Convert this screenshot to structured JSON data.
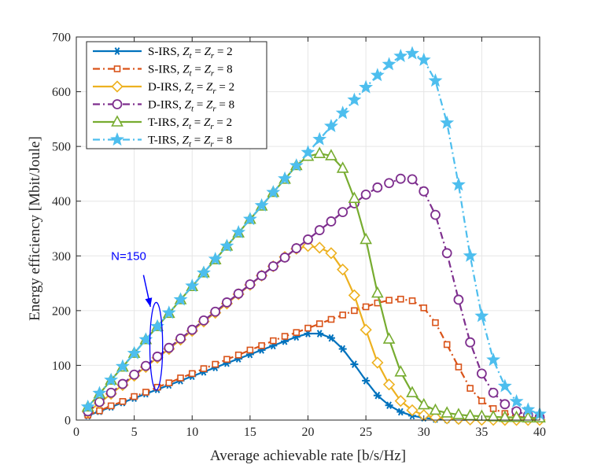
{
  "chart_data": {
    "type": "line",
    "title": "",
    "xlabel": "Average achievable rate [b/s/Hz]",
    "ylabel": "Energy efficiency [Mbit/Joule]",
    "xlim": [
      0,
      40
    ],
    "ylim": [
      0,
      700
    ],
    "xticks": [
      0,
      5,
      10,
      15,
      20,
      25,
      30,
      35,
      40
    ],
    "yticks": [
      0,
      100,
      200,
      300,
      400,
      500,
      600,
      700
    ],
    "grid": true,
    "legend_position": "top-left",
    "series": [
      {
        "name": "S-IRS, Z_t = Z_r = 2",
        "legend_main": "S-IRS, ",
        "legend_z": "2",
        "color": "#0072BD",
        "linestyle": "solid",
        "marker": "asterisk",
        "x": [
          1,
          2,
          3,
          4,
          5,
          6,
          7,
          8,
          9,
          10,
          11,
          12,
          13,
          14,
          15,
          16,
          17,
          18,
          19,
          20,
          21,
          22,
          23,
          24,
          25,
          26,
          27,
          28,
          29,
          30,
          31,
          32,
          33,
          34,
          35,
          36,
          37,
          38,
          39,
          40
        ],
        "y": [
          8,
          16,
          24,
          32,
          40,
          48,
          56,
          64,
          72,
          80,
          88,
          96,
          104,
          112,
          120,
          128,
          136,
          144,
          152,
          158,
          158,
          150,
          130,
          102,
          72,
          45,
          27,
          15,
          8,
          4,
          2,
          1,
          0.5,
          0.3,
          0.2,
          0.1,
          0.1,
          0.1,
          0.1,
          0.1
        ]
      },
      {
        "name": "S-IRS, Z_t = Z_r = 8",
        "legend_main": "S-IRS, ",
        "legend_z": "8",
        "color": "#D95319",
        "linestyle": "dashdot",
        "marker": "square",
        "x": [
          1,
          2,
          3,
          4,
          5,
          6,
          7,
          8,
          9,
          10,
          11,
          12,
          13,
          14,
          15,
          16,
          17,
          18,
          19,
          20,
          21,
          22,
          23,
          24,
          25,
          26,
          27,
          28,
          29,
          30,
          31,
          32,
          33,
          34,
          35,
          36,
          37,
          38,
          39,
          40
        ],
        "y": [
          9,
          17,
          26,
          34,
          43,
          51,
          60,
          68,
          77,
          85,
          94,
          102,
          111,
          119,
          128,
          136,
          145,
          153,
          160,
          168,
          176,
          184,
          192,
          200,
          207,
          214,
          219,
          221,
          218,
          205,
          178,
          138,
          97,
          58,
          35,
          21,
          12,
          7,
          4,
          2
        ]
      },
      {
        "name": "D-IRS, Z_t = Z_r = 2",
        "legend_main": "D-IRS, ",
        "legend_z": "2",
        "color": "#EDB120",
        "linestyle": "solid",
        "marker": "diamond",
        "x": [
          1,
          2,
          3,
          4,
          5,
          6,
          7,
          8,
          9,
          10,
          11,
          12,
          13,
          14,
          15,
          16,
          17,
          18,
          19,
          20,
          21,
          22,
          23,
          24,
          25,
          26,
          27,
          28,
          29,
          30,
          31,
          32,
          33,
          34,
          35,
          36,
          37,
          38,
          39,
          40
        ],
        "y": [
          15,
          31,
          48,
          64,
          81,
          97,
          114,
          130,
          147,
          163,
          180,
          196,
          213,
          230,
          247,
          264,
          281,
          298,
          313,
          318,
          315,
          305,
          275,
          228,
          165,
          105,
          65,
          35,
          18,
          9,
          5,
          3,
          2,
          1,
          0.5,
          0.3,
          0.2,
          0.1,
          0.1,
          0.1
        ]
      },
      {
        "name": "D-IRS, Z_t = Z_r = 8",
        "legend_main": "D-IRS, ",
        "legend_z": "8",
        "color": "#7E2F8E",
        "linestyle": "dashdot",
        "marker": "circle",
        "x": [
          1,
          2,
          3,
          4,
          5,
          6,
          7,
          8,
          9,
          10,
          11,
          12,
          13,
          14,
          15,
          16,
          17,
          18,
          19,
          20,
          21,
          22,
          23,
          24,
          25,
          26,
          27,
          28,
          29,
          30,
          31,
          32,
          33,
          34,
          35,
          36,
          37,
          38,
          39,
          40
        ],
        "y": [
          16,
          33,
          50,
          66,
          83,
          99,
          116,
          132,
          149,
          165,
          182,
          198,
          215,
          231,
          248,
          264,
          281,
          297,
          314,
          330,
          347,
          363,
          380,
          396,
          412,
          425,
          433,
          441,
          440,
          418,
          375,
          305,
          220,
          142,
          85,
          50,
          29,
          16,
          9,
          5
        ]
      },
      {
        "name": "T-IRS, Z_t = Z_r = 2",
        "legend_main": "T-IRS, ",
        "legend_z": "2",
        "color": "#77AC30",
        "linestyle": "solid",
        "marker": "triangle",
        "x": [
          1,
          2,
          3,
          4,
          5,
          6,
          7,
          8,
          9,
          10,
          11,
          12,
          13,
          14,
          15,
          16,
          17,
          18,
          19,
          20,
          21,
          22,
          23,
          24,
          25,
          26,
          27,
          28,
          29,
          30,
          31,
          32,
          33,
          34,
          35,
          36,
          37,
          38,
          39,
          40
        ],
        "y": [
          24,
          48,
          73,
          97,
          122,
          147,
          171,
          195,
          220,
          244,
          269,
          293,
          318,
          342,
          367,
          391,
          416,
          440,
          465,
          482,
          487,
          483,
          460,
          405,
          330,
          232,
          148,
          88,
          50,
          28,
          18,
          13,
          10,
          8,
          7,
          6,
          5,
          5,
          4,
          4
        ]
      },
      {
        "name": "T-IRS, Z_t = Z_r = 8",
        "legend_main": "T-IRS, ",
        "legend_z": "8",
        "color": "#4DBEEE",
        "linestyle": "dashdot",
        "marker": "star",
        "x": [
          1,
          2,
          3,
          4,
          5,
          6,
          7,
          8,
          9,
          10,
          11,
          12,
          13,
          14,
          15,
          16,
          17,
          18,
          19,
          20,
          21,
          22,
          23,
          24,
          25,
          26,
          27,
          28,
          29,
          30,
          31,
          32,
          33,
          34,
          35,
          36,
          37,
          38,
          39,
          40
        ],
        "y": [
          24,
          49,
          73,
          98,
          122,
          147,
          171,
          196,
          220,
          245,
          269,
          294,
          318,
          343,
          367,
          392,
          416,
          441,
          465,
          489,
          513,
          537,
          561,
          585,
          608,
          630,
          650,
          665,
          670,
          658,
          620,
          543,
          430,
          300,
          190,
          110,
          62,
          34,
          19,
          11
        ]
      }
    ],
    "annotation": {
      "text": "N=150",
      "ellipse_center": [
        6.9,
        135
      ],
      "ellipse_rx": 0.55,
      "ellipse_ry": 80,
      "arrow_from": [
        5.8,
        265
      ],
      "arrow_to": [
        6.4,
        207
      ],
      "text_at": [
        3.0,
        300
      ],
      "color": "#0000ff"
    }
  }
}
